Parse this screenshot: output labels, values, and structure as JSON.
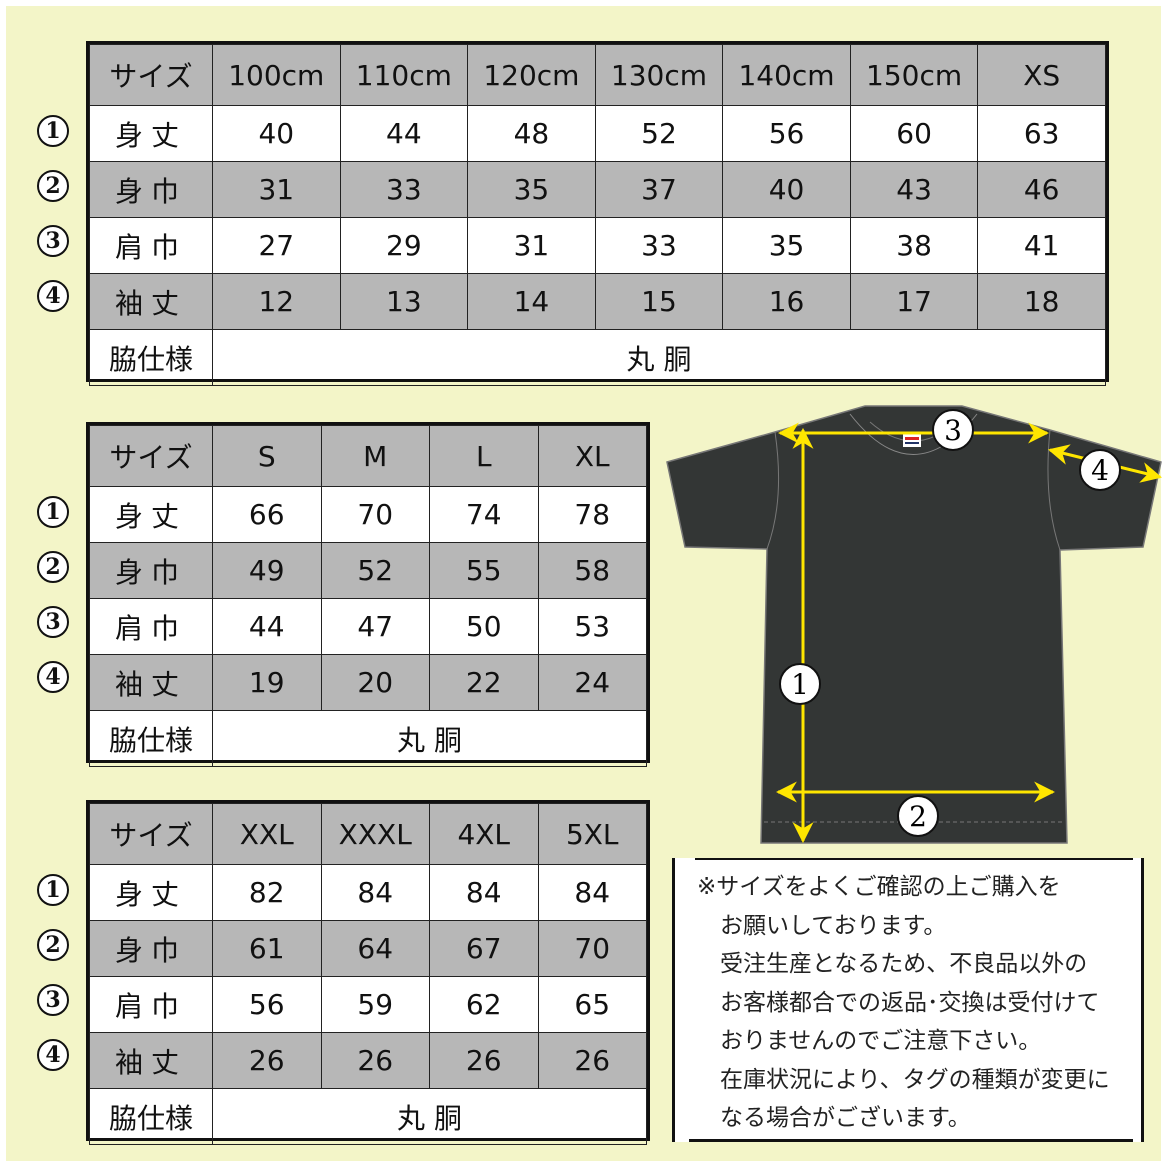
{
  "colors": {
    "background": "#f3f5c8",
    "header_gray": "#b7b7b7",
    "shirt": "#333635",
    "arrow": "#ffe600"
  },
  "tables": [
    {
      "header": [
        "サイズ",
        "100cm",
        "110cm",
        "120cm",
        "130cm",
        "140cm",
        "150cm",
        "XS"
      ],
      "rows": [
        {
          "num": "1",
          "label": "身丈",
          "values": [
            "40",
            "44",
            "48",
            "52",
            "56",
            "60",
            "63"
          ]
        },
        {
          "num": "2",
          "label": "身巾",
          "values": [
            "31",
            "33",
            "35",
            "37",
            "40",
            "43",
            "46"
          ]
        },
        {
          "num": "3",
          "label": "肩巾",
          "values": [
            "27",
            "29",
            "31",
            "33",
            "35",
            "38",
            "41"
          ]
        },
        {
          "num": "4",
          "label": "袖丈",
          "values": [
            "12",
            "13",
            "14",
            "15",
            "16",
            "17",
            "18"
          ]
        }
      ],
      "footer": {
        "label": "脇仕様",
        "value": "丸 胴"
      }
    },
    {
      "header": [
        "サイズ",
        "S",
        "M",
        "L",
        "XL"
      ],
      "rows": [
        {
          "num": "1",
          "label": "身丈",
          "values": [
            "66",
            "70",
            "74",
            "78"
          ]
        },
        {
          "num": "2",
          "label": "身巾",
          "values": [
            "49",
            "52",
            "55",
            "58"
          ]
        },
        {
          "num": "3",
          "label": "肩巾",
          "values": [
            "44",
            "47",
            "50",
            "53"
          ]
        },
        {
          "num": "4",
          "label": "袖丈",
          "values": [
            "19",
            "20",
            "22",
            "24"
          ]
        }
      ],
      "footer": {
        "label": "脇仕様",
        "value": "丸 胴"
      }
    },
    {
      "header": [
        "サイズ",
        "XXL",
        "XXXL",
        "4XL",
        "5XL"
      ],
      "rows": [
        {
          "num": "1",
          "label": "身丈",
          "values": [
            "82",
            "84",
            "84",
            "84"
          ]
        },
        {
          "num": "2",
          "label": "身巾",
          "values": [
            "61",
            "64",
            "67",
            "70"
          ]
        },
        {
          "num": "3",
          "label": "肩巾",
          "values": [
            "56",
            "59",
            "62",
            "65"
          ]
        },
        {
          "num": "4",
          "label": "袖丈",
          "values": [
            "26",
            "26",
            "26",
            "26"
          ]
        }
      ],
      "footer": {
        "label": "脇仕様",
        "value": "丸 胴"
      }
    }
  ],
  "diagram": {
    "markers": [
      "1",
      "2",
      "3",
      "4"
    ]
  },
  "note": {
    "lines": [
      "※サイズをよくご確認の上ご購入を",
      "　お願いしております。",
      "　受注生産となるため、不良品以外の",
      "　お客様都合での返品･交換は受付けて",
      "　おりませんのでご注意下さい。",
      "　在庫状況により、タグの種類が変更に",
      "　なる場合がございます。"
    ]
  }
}
